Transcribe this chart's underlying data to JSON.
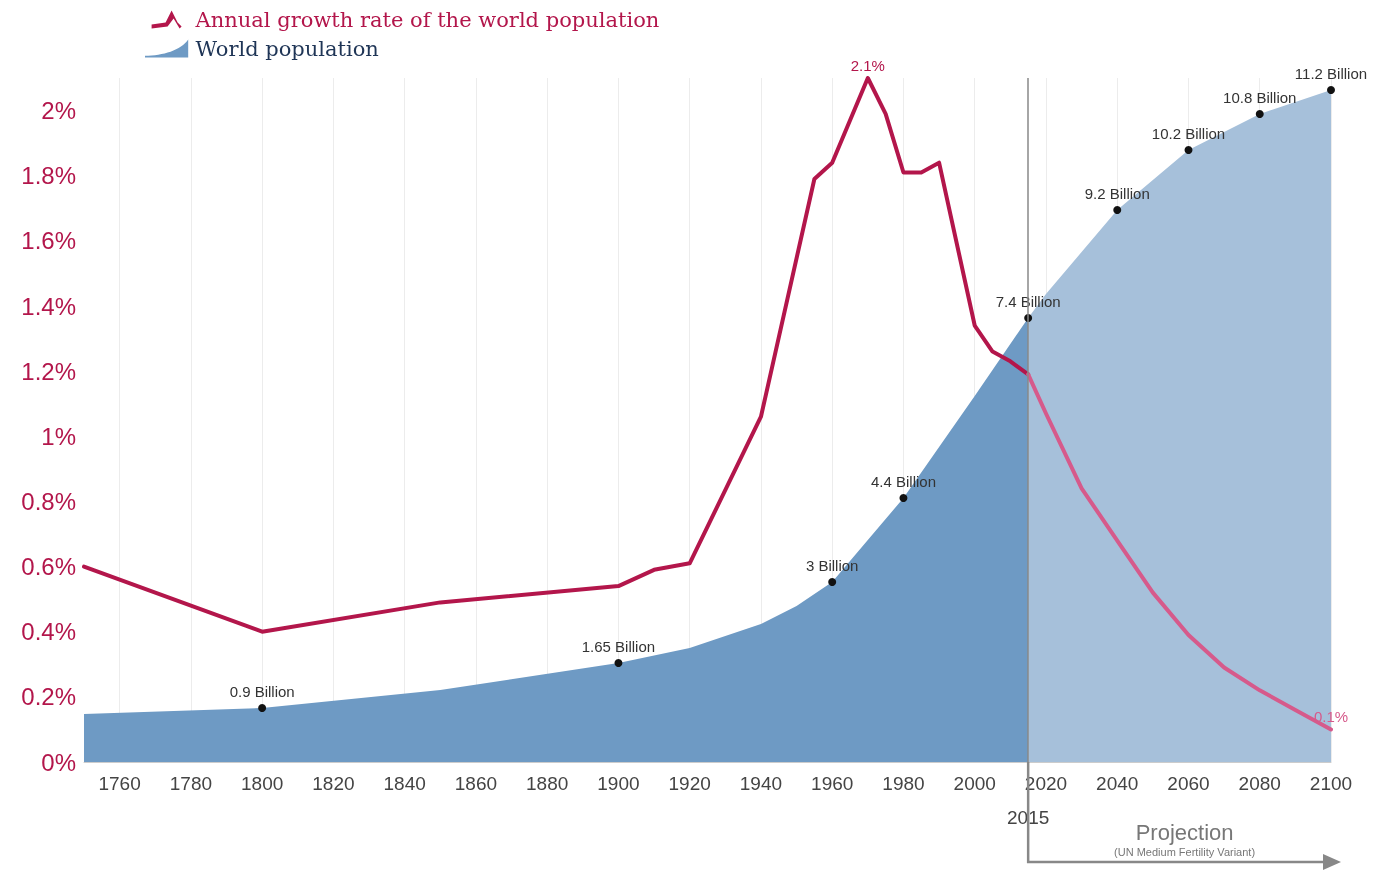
{
  "chart_data": {
    "type": "line",
    "ylim": [
      0,
      2.1
    ],
    "yticks": [
      {
        "value": 0,
        "label": "0%"
      },
      {
        "value": 0.2,
        "label": "0.2%"
      },
      {
        "value": 0.4,
        "label": "0.4%"
      },
      {
        "value": 0.6,
        "label": "0.6%"
      },
      {
        "value": 0.8,
        "label": "0.8%"
      },
      {
        "value": 1,
        "label": "1%"
      },
      {
        "value": 1.2,
        "label": "1.2%"
      },
      {
        "value": 1.4,
        "label": "1.4%"
      },
      {
        "value": 1.6,
        "label": "1.6%"
      },
      {
        "value": 1.8,
        "label": "1.8%"
      },
      {
        "value": 2,
        "label": "2%"
      }
    ],
    "xlim": [
      1750,
      2100
    ],
    "xticks": [
      1760,
      1780,
      1800,
      1820,
      1840,
      1860,
      1880,
      1900,
      1920,
      1940,
      1960,
      1980,
      2000,
      2020,
      2040,
      2060,
      2080,
      2100
    ],
    "y2lim": [
      0,
      11.4
    ],
    "series": [
      {
        "type": "area",
        "name": "World population",
        "axis": "y2",
        "color": "#6e9ac4",
        "x": [
          1750,
          1800,
          1850,
          1900,
          1920,
          1940,
          1950,
          1960,
          1980,
          2000,
          2015
        ],
        "values": [
          0.8,
          0.9,
          1.2,
          1.65,
          1.9,
          2.3,
          2.6,
          3,
          4.4,
          6.1,
          7.4
        ],
        "value_labels": [
          null,
          "0.9 Billion",
          null,
          "1.65 Billion",
          null,
          null,
          null,
          "3 Billion",
          "4.4 Billion",
          null,
          "7.4 Billion"
        ]
      },
      {
        "type": "area",
        "axis": "y2",
        "color": "#a6c0da",
        "x": [
          2015,
          2020,
          2030,
          2040,
          2050,
          2060,
          2070,
          2080,
          2090,
          2100
        ],
        "values": [
          7.4,
          7.8,
          8.5,
          9.2,
          9.7,
          10.2,
          10.5,
          10.8,
          11.0,
          11.2
        ],
        "value_labels": [
          null,
          null,
          null,
          "9.2 Billion",
          null,
          "10.2 Billion",
          null,
          "10.8 Billion",
          null,
          "11.2 Billion"
        ]
      },
      {
        "name": "Annual growth rate of the world population",
        "color": "#b3164b",
        "marker": "none",
        "x": [
          1750,
          1800,
          1850,
          1900,
          1910,
          1920,
          1940,
          1955,
          1960,
          1970,
          1975,
          1980,
          1985,
          1990,
          2000,
          2005,
          2010,
          2015
        ],
        "values": [
          0.6,
          0.4,
          0.49,
          0.54,
          0.59,
          0.61,
          1.06,
          1.79,
          1.84,
          2.1,
          1.99,
          1.81,
          1.81,
          1.84,
          1.34,
          1.26,
          1.23,
          1.19
        ],
        "value_labels": [
          null,
          null,
          null,
          null,
          null,
          null,
          null,
          null,
          null,
          "2.1%",
          null,
          null,
          null,
          null,
          null,
          null,
          null,
          null
        ]
      },
      {
        "color": "#d65a8b",
        "marker": "none",
        "x": [
          2015,
          2020,
          2030,
          2040,
          2050,
          2060,
          2070,
          2080,
          2090,
          2100
        ],
        "values": [
          1.19,
          1.07,
          0.84,
          0.68,
          0.52,
          0.39,
          0.29,
          0.22,
          0.16,
          0.1
        ],
        "value_labels": [
          null,
          null,
          null,
          null,
          null,
          null,
          null,
          null,
          null,
          "0.1%"
        ]
      }
    ],
    "ref_lines": [
      {
        "axis": "x",
        "value": 2015,
        "label": "2015",
        "color": "#888888"
      }
    ],
    "annotations": [
      "Projection",
      "(UN Medium Fertility Variant)"
    ],
    "grid": "x",
    "legend": "top left",
    "line_style": "solid"
  }
}
